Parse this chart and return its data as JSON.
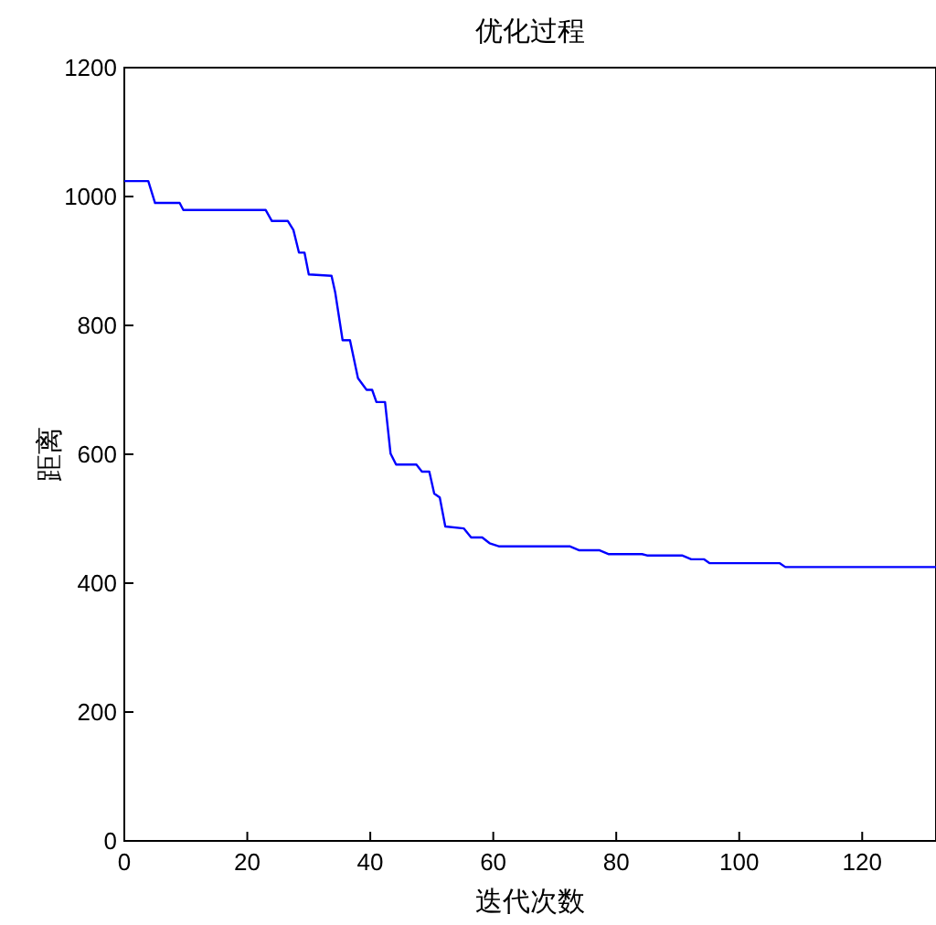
{
  "chart_data": {
    "type": "line",
    "title": "优化过程",
    "xlabel": "迭代次数",
    "ylabel": "距离",
    "series": [
      {
        "color": "#0000ff",
        "x": [
          0,
          3.9,
          5,
          9,
          9.6,
          23,
          24,
          26.6,
          27.5,
          28.4,
          29.3,
          30,
          33.7,
          34.3,
          35.5,
          36.7,
          38,
          39.4,
          40.3,
          41,
          42.4,
          43.3,
          44.2,
          47.5,
          48.4,
          49.6,
          50.4,
          51.3,
          52.2,
          55.2,
          56.4,
          58.2,
          59.4,
          61,
          72.5,
          74,
          77.3,
          78.8,
          84.2,
          85,
          90.7,
          92.2,
          94.3,
          95.2,
          106.6,
          107.5,
          132
        ],
        "values": [
          1024,
          1024,
          990,
          990,
          979,
          979,
          962,
          962,
          948,
          913,
          913,
          879,
          877,
          851,
          777,
          777,
          718,
          700,
          700,
          681,
          681,
          601,
          584,
          584,
          573,
          573,
          539,
          533,
          488,
          485,
          471,
          471,
          462,
          457,
          457,
          451,
          451,
          445,
          445,
          443,
          443,
          437,
          437,
          431,
          431,
          425,
          425
        ]
      }
    ],
    "xlim": [
      0,
      132
    ],
    "xticks": [
      0,
      20,
      40,
      60,
      80,
      100,
      120
    ],
    "ylim": [
      0,
      1200
    ],
    "yticks": [
      0,
      200,
      400,
      600,
      800,
      1000,
      1200
    ],
    "grid": false,
    "marker": "none",
    "line_style": "solid"
  }
}
